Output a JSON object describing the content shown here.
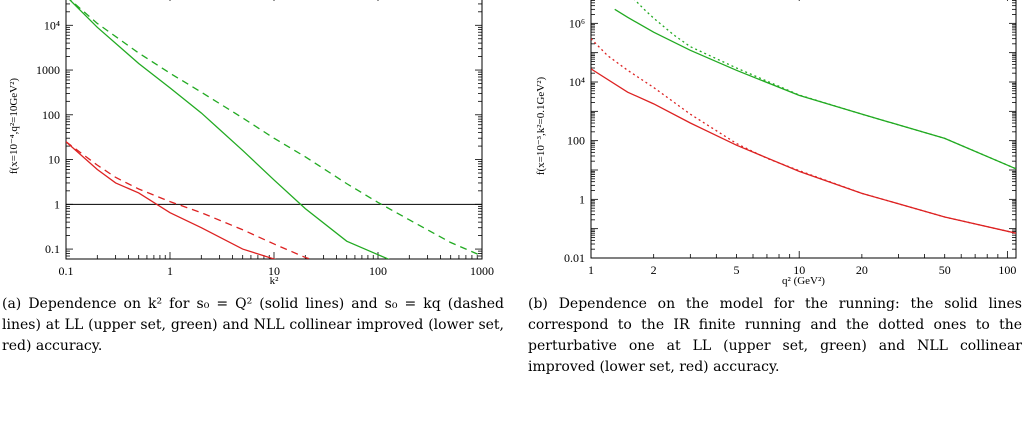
{
  "chart_data": [
    {
      "type": "line",
      "title": "",
      "xlabel": "k²",
      "ylabel": "f(x=10⁻⁴,q²=10GeV²)",
      "x_scale": "log",
      "y_scale": "log",
      "xlim": [
        0.1,
        1000
      ],
      "ylim": [
        0.06,
        50000
      ],
      "x_ticks": [
        {
          "value": 0.1,
          "label": "0.1"
        },
        {
          "value": 1,
          "label": "1"
        },
        {
          "value": 10,
          "label": "10"
        },
        {
          "value": 100,
          "label": "100"
        },
        {
          "value": 1000,
          "label": "1000"
        }
      ],
      "y_ticks": [
        {
          "value": 0.1,
          "label": "0.1"
        },
        {
          "value": 1,
          "label": "1"
        },
        {
          "value": 10,
          "label": "10"
        },
        {
          "value": 100,
          "label": "100"
        },
        {
          "value": 1000,
          "label": "1000"
        },
        {
          "value": 10000,
          "label": "10⁴"
        }
      ],
      "hlines": [
        {
          "y": 1,
          "color": "#000000"
        }
      ],
      "series": [
        {
          "color": "#22aa22",
          "dash": "solid",
          "x": [
            0.1,
            0.2,
            0.5,
            1,
            2,
            5,
            10,
            20,
            50,
            100,
            150
          ],
          "y": [
            45000,
            9000,
            1400,
            400,
            110,
            16,
            3.5,
            0.8,
            0.15,
            0.075,
            0.05
          ]
        },
        {
          "color": "#22aa22",
          "dash": "dashed",
          "x": [
            0.1,
            0.2,
            0.5,
            1,
            2,
            5,
            10,
            20,
            50,
            100,
            200,
            500,
            1000
          ],
          "y": [
            45000,
            11000,
            2400,
            850,
            320,
            85,
            30,
            11.5,
            2.9,
            1.1,
            0.45,
            0.14,
            0.07
          ]
        },
        {
          "color": "#dd2222",
          "dash": "solid",
          "x": [
            0.1,
            0.2,
            0.3,
            0.5,
            1,
            2,
            5,
            10,
            15
          ],
          "y": [
            25,
            6,
            3,
            1.8,
            0.65,
            0.3,
            0.1,
            0.06,
            0.045
          ]
        },
        {
          "color": "#dd2222",
          "dash": "dashed",
          "x": [
            0.1,
            0.2,
            0.3,
            0.5,
            1,
            2,
            5,
            10,
            20,
            32
          ],
          "y": [
            25,
            7.5,
            4,
            2.2,
            1.15,
            0.65,
            0.27,
            0.13,
            0.065,
            0.045
          ]
        }
      ]
    },
    {
      "type": "line",
      "title": "",
      "xlabel": "q² (GeV²)",
      "ylabel": "f(x=10⁻³,k²=0.1GeV²)",
      "x_scale": "log",
      "y_scale": "log",
      "xlim": [
        1,
        110
      ],
      "ylim": [
        0.01,
        10000000
      ],
      "x_ticks": [
        {
          "value": 1,
          "label": "1"
        },
        {
          "value": 2,
          "label": "2"
        },
        {
          "value": 5,
          "label": "5"
        },
        {
          "value": 10,
          "label": "10"
        },
        {
          "value": 20,
          "label": "20"
        },
        {
          "value": 50,
          "label": "50"
        },
        {
          "value": 100,
          "label": "100"
        }
      ],
      "y_ticks": [
        {
          "value": 0.01,
          "label": "0.01"
        },
        {
          "value": 1,
          "label": "1"
        },
        {
          "value": 100,
          "label": "100"
        },
        {
          "value": 10000,
          "label": "10⁴"
        },
        {
          "value": 1000000,
          "label": "10⁶"
        }
      ],
      "series": [
        {
          "color": "#22aa22",
          "dash": "solid",
          "x": [
            1.3,
            1.5,
            2,
            3,
            5,
            10,
            20,
            50,
            110
          ],
          "y": [
            3000000,
            1600000,
            500000,
            120000,
            25000,
            3500,
            800,
            120,
            11
          ]
        },
        {
          "color": "#22aa22",
          "dash": "dotted",
          "x": [
            1.6,
            1.8,
            2,
            2.5,
            3,
            5,
            10,
            20,
            50,
            110
          ],
          "y": [
            7000000,
            3000000,
            1500000,
            400000,
            160000,
            30000,
            3600,
            800,
            120,
            11
          ]
        },
        {
          "color": "#dd2222",
          "dash": "solid",
          "x": [
            1,
            1.5,
            2,
            3,
            5,
            10,
            20,
            50,
            110
          ],
          "y": [
            28000,
            4500,
            1800,
            400,
            70,
            9,
            1.6,
            0.25,
            0.07
          ]
        },
        {
          "color": "#dd2222",
          "dash": "dotted",
          "x": [
            1,
            1.2,
            1.5,
            2,
            3,
            5,
            7,
            10,
            20,
            50,
            110
          ],
          "y": [
            300000,
            80000,
            25000,
            6500,
            800,
            80,
            25,
            9.5,
            1.6,
            0.25,
            0.07
          ]
        }
      ]
    }
  ],
  "captions": {
    "a": "(a) Dependence on k² for s₀ = Q² (solid lines) and s₀ = kq (dashed lines) at LL (upper set, green) and NLL collinear improved (lower set, red) accuracy.",
    "b": "(b) Dependence on the model for the running: the solid lines correspond to the IR finite running and the dotted ones to the perturbative one at LL (upper set, green) and NLL collinear improved (lower set, red) accuracy."
  }
}
